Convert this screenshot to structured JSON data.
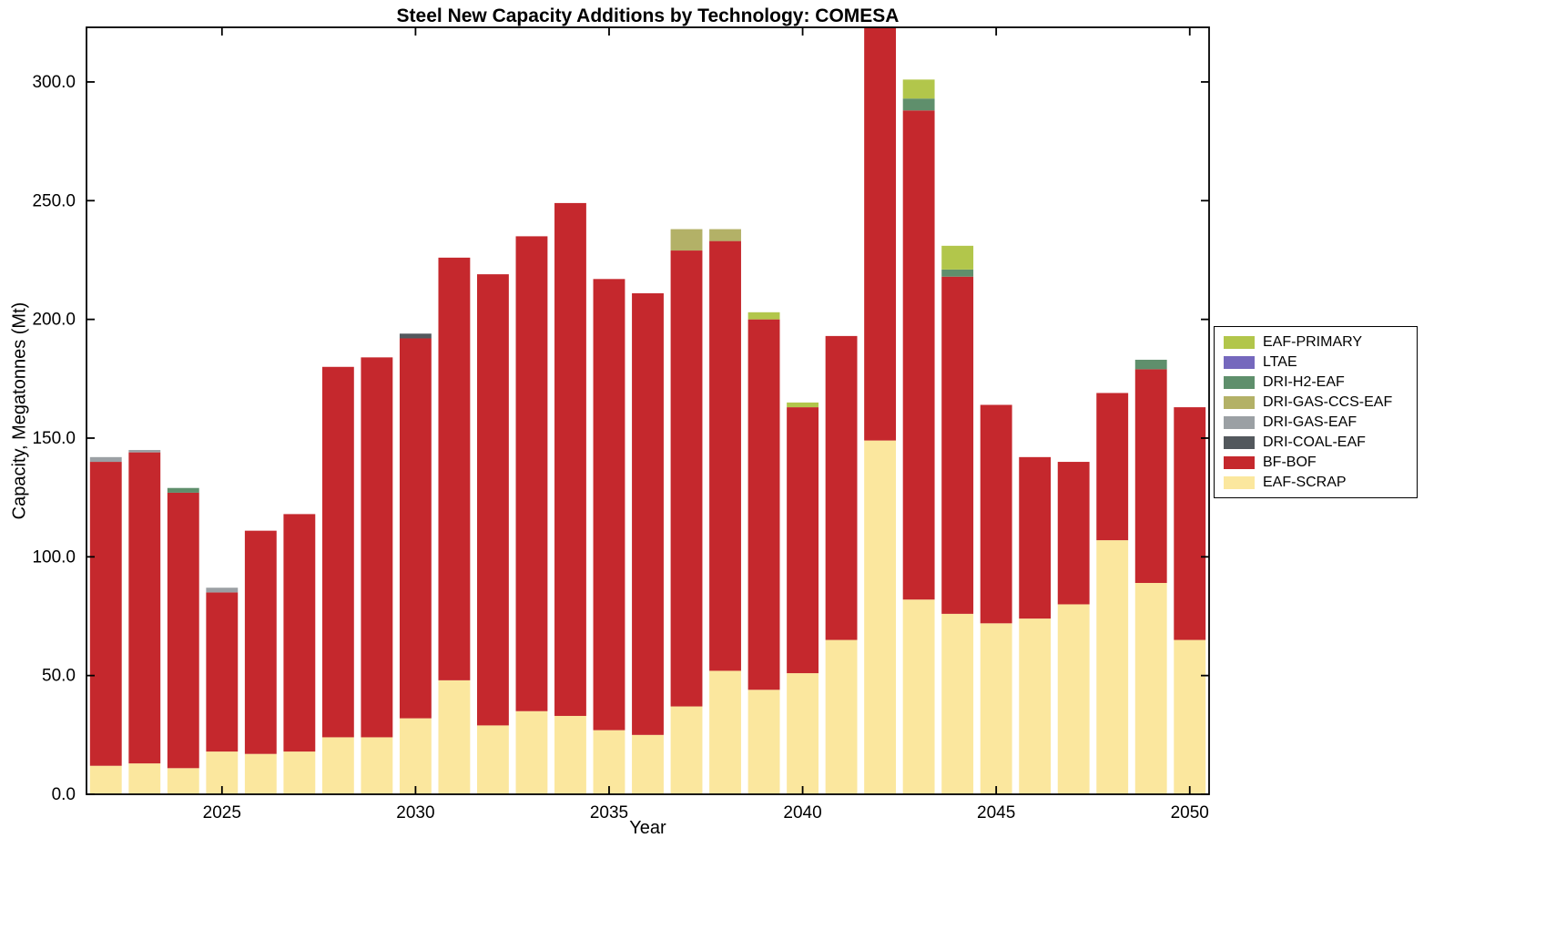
{
  "chart_data": {
    "type": "bar",
    "stacked": true,
    "title": "Steel New Capacity Additions by Technology: COMESA",
    "xlabel": "Year",
    "ylabel": "Capacity, Megatonnes (Mt)",
    "ylim": [
      0,
      323
    ],
    "yticks": [
      0,
      50,
      100,
      150,
      200,
      250,
      300
    ],
    "ytick_labels": [
      "0.0",
      "50.0",
      "100.0",
      "150.0",
      "200.0",
      "250.0",
      "300.0"
    ],
    "xticks": [
      2025,
      2030,
      2035,
      2040,
      2045,
      2050
    ],
    "grid": false,
    "legend_position": "right",
    "years": [
      2022,
      2023,
      2024,
      2025,
      2026,
      2027,
      2028,
      2029,
      2030,
      2031,
      2032,
      2033,
      2034,
      2035,
      2036,
      2037,
      2038,
      2039,
      2040,
      2041,
      2042,
      2043,
      2044,
      2045,
      2046,
      2047,
      2048,
      2049,
      2050
    ],
    "series": [
      {
        "name": "EAF-SCRAP",
        "color": "#FBE79E",
        "values": [
          12,
          13,
          11,
          18,
          17,
          18,
          24,
          24,
          32,
          48,
          29,
          35,
          33,
          27,
          25,
          37,
          52,
          44,
          51,
          65,
          149,
          82,
          76,
          72,
          74,
          80,
          107,
          89,
          65
        ]
      },
      {
        "name": "BF-BOF",
        "color": "#C5282D",
        "values": [
          128,
          131,
          116,
          67,
          94,
          100,
          156,
          160,
          160,
          178,
          190,
          200,
          216,
          190,
          186,
          192,
          181,
          156,
          112,
          128,
          181,
          206,
          142,
          92,
          68,
          60,
          62,
          90,
          98
        ]
      },
      {
        "name": "DRI-COAL-EAF",
        "color": "#53585D",
        "values": [
          0,
          0,
          0,
          0,
          0,
          0,
          0,
          0,
          2,
          0,
          0,
          0,
          0,
          0,
          0,
          0,
          0,
          0,
          0,
          0,
          0,
          0,
          0,
          0,
          0,
          0,
          0,
          0,
          0
        ]
      },
      {
        "name": "DRI-GAS-EAF",
        "color": "#9BA0A4",
        "values": [
          2,
          1,
          0,
          2,
          0,
          0,
          0,
          0,
          0,
          0,
          0,
          0,
          0,
          0,
          0,
          0,
          0,
          0,
          0,
          0,
          0,
          0,
          0,
          0,
          0,
          0,
          0,
          0,
          0
        ]
      },
      {
        "name": "DRI-GAS-CCS-EAF",
        "color": "#B3B167",
        "values": [
          0,
          0,
          0,
          0,
          0,
          0,
          0,
          0,
          0,
          0,
          0,
          0,
          0,
          0,
          0,
          9,
          5,
          0,
          0,
          0,
          0,
          0,
          0,
          0,
          0,
          0,
          0,
          0,
          0
        ]
      },
      {
        "name": "DRI-H2-EAF",
        "color": "#5F8F6C",
        "values": [
          0,
          0,
          2,
          0,
          0,
          0,
          0,
          0,
          0,
          0,
          0,
          0,
          0,
          0,
          0,
          0,
          0,
          0,
          0,
          0,
          0,
          5,
          3,
          0,
          0,
          0,
          0,
          4,
          0
        ]
      },
      {
        "name": "LTAE",
        "color": "#7568BD",
        "values": [
          0,
          0,
          0,
          0,
          0,
          0,
          0,
          0,
          0,
          0,
          0,
          0,
          0,
          0,
          0,
          0,
          0,
          0,
          0,
          0,
          0,
          0,
          0,
          0,
          0,
          0,
          0,
          0,
          0
        ]
      },
      {
        "name": "EAF-PRIMARY",
        "color": "#B2C64B",
        "values": [
          0,
          0,
          0,
          0,
          0,
          0,
          0,
          0,
          0,
          0,
          0,
          0,
          0,
          0,
          0,
          0,
          0,
          3,
          2,
          0,
          0,
          8,
          10,
          0,
          0,
          0,
          0,
          0,
          0
        ]
      }
    ],
    "legend": [
      "EAF-PRIMARY",
      "LTAE",
      "DRI-H2-EAF",
      "DRI-GAS-CCS-EAF",
      "DRI-GAS-EAF",
      "DRI-COAL-EAF",
      "BF-BOF",
      "EAF-SCRAP"
    ]
  }
}
